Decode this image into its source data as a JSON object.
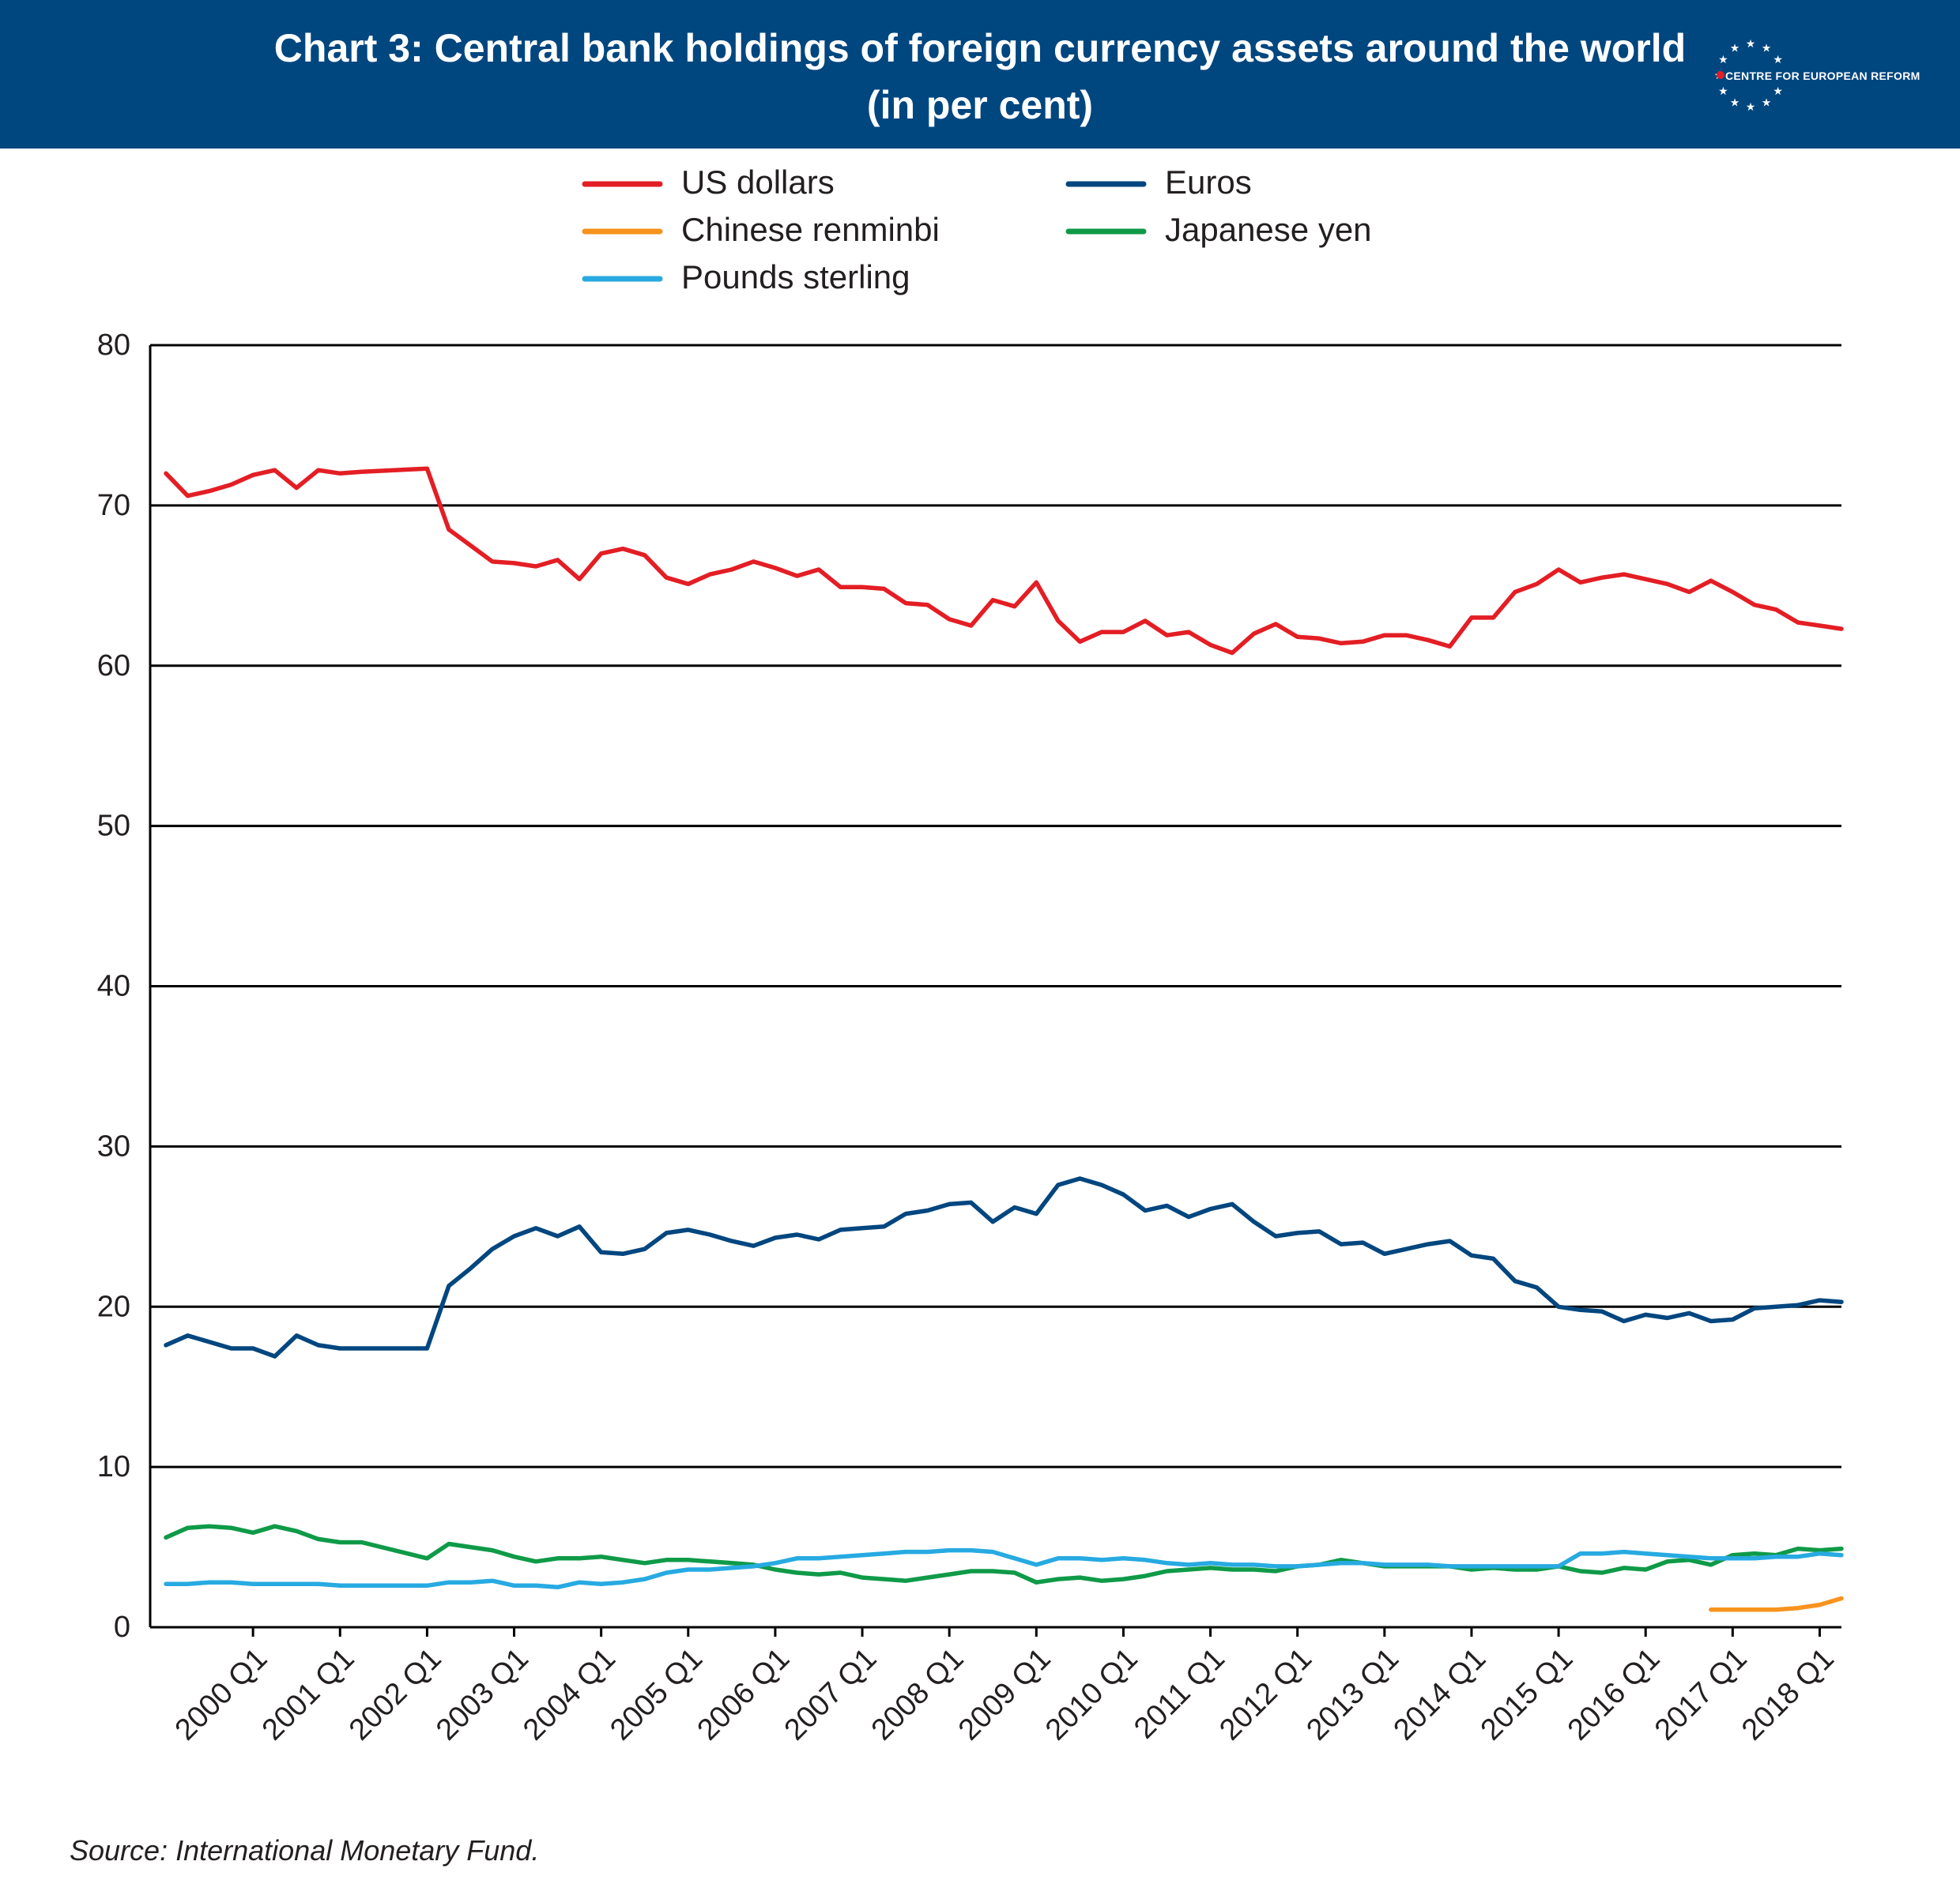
{
  "header": {
    "title_line1": "Chart 3: Central bank holdings of foreign currency assets around the world",
    "title_line2": "(in per cent)",
    "background": "#00467f",
    "logo_text": "CENTRE FOR EUROPEAN REFORM",
    "logo_icon": "eu-star-circle-icon"
  },
  "source": "Source: International Monetary Fund.",
  "chart_data": {
    "type": "line",
    "xlabel": "",
    "ylabel": "",
    "ylim": [
      0,
      80
    ],
    "yticks": [
      0,
      10,
      20,
      30,
      40,
      50,
      60,
      70,
      80
    ],
    "grid": "horizontal",
    "legend_position": "top-center",
    "x_start": "1999 Q1",
    "x_end": "2018 Q2",
    "xtick_labels": [
      "2000 Q1",
      "2001 Q1",
      "2002 Q1",
      "2003 Q1",
      "2004 Q1",
      "2005 Q1",
      "2006 Q1",
      "2007 Q1",
      "2008 Q1",
      "2009 Q1",
      "2010 Q1",
      "2011 Q1",
      "2012 Q1",
      "2013 Q1",
      "2014 Q1",
      "2015 Q1",
      "2016 Q1",
      "2017 Q1",
      "2018 Q1"
    ],
    "series": [
      {
        "name": "US dollars",
        "color": "#e31e24",
        "start": "1999 Q1",
        "values": [
          72.0,
          70.6,
          70.9,
          71.3,
          71.9,
          72.2,
          71.1,
          72.2,
          72.0,
          72.1,
          null,
          null,
          72.3,
          68.5,
          67.5,
          66.5,
          66.4,
          66.2,
          66.6,
          65.4,
          67.0,
          67.3,
          66.9,
          65.5,
          65.1,
          65.7,
          66.0,
          66.5,
          66.1,
          65.6,
          66.0,
          64.9,
          64.9,
          64.8,
          63.9,
          63.8,
          62.9,
          62.5,
          64.1,
          63.7,
          65.2,
          62.8,
          61.5,
          62.1,
          62.1,
          62.8,
          61.9,
          62.1,
          61.3,
          60.8,
          62.0,
          62.6,
          61.8,
          61.7,
          61.4,
          61.5,
          61.9,
          61.9,
          61.6,
          61.2,
          63.0,
          63.0,
          64.6,
          65.1,
          66.0,
          65.2,
          65.5,
          65.7,
          65.4,
          65.1,
          64.6,
          65.3,
          64.6,
          63.8,
          63.5,
          62.7,
          62.5,
          62.3
        ]
      },
      {
        "name": "Euros",
        "color": "#00467f",
        "start": "1999 Q1",
        "values": [
          17.6,
          18.2,
          17.8,
          17.4,
          17.4,
          16.9,
          18.2,
          17.6,
          17.4,
          17.4,
          null,
          null,
          17.4,
          21.3,
          22.4,
          23.6,
          24.4,
          24.9,
          24.4,
          25.0,
          23.4,
          23.3,
          23.6,
          24.6,
          24.8,
          24.5,
          24.1,
          23.8,
          24.3,
          24.5,
          24.2,
          24.8,
          24.9,
          25.0,
          25.8,
          26.0,
          26.4,
          26.5,
          25.3,
          26.2,
          25.8,
          27.6,
          28.0,
          27.6,
          27.0,
          26.0,
          26.3,
          25.6,
          26.1,
          26.4,
          25.3,
          24.4,
          24.6,
          24.7,
          23.9,
          24.0,
          23.3,
          23.6,
          23.9,
          24.1,
          23.2,
          23.0,
          21.6,
          21.2,
          20.0,
          19.8,
          19.7,
          19.1,
          19.5,
          19.3,
          19.6,
          19.1,
          19.2,
          19.9,
          20.0,
          20.1,
          20.4,
          20.3
        ]
      },
      {
        "name": "Chinese renminbi",
        "color": "#f7931e",
        "start": "2016 Q4",
        "values": [
          1.1,
          1.1,
          1.1,
          1.1,
          1.2,
          1.4,
          1.8
        ]
      },
      {
        "name": "Japanese yen",
        "color": "#0f9a48",
        "start": "1999 Q1",
        "values": [
          5.6,
          6.2,
          6.3,
          6.2,
          5.9,
          6.3,
          6.0,
          5.5,
          5.3,
          5.3,
          null,
          null,
          4.3,
          5.2,
          5.0,
          4.8,
          4.4,
          4.1,
          4.3,
          4.3,
          4.4,
          4.2,
          4.0,
          4.2,
          4.2,
          4.1,
          4.0,
          3.9,
          3.6,
          3.4,
          3.3,
          3.4,
          3.1,
          3.0,
          2.9,
          3.1,
          3.3,
          3.5,
          3.5,
          3.4,
          2.8,
          3.0,
          3.1,
          2.9,
          3.0,
          3.2,
          3.5,
          3.6,
          3.7,
          3.6,
          3.6,
          3.5,
          3.8,
          3.9,
          4.2,
          4.0,
          3.8,
          3.8,
          3.8,
          3.8,
          3.6,
          3.7,
          3.6,
          3.6,
          3.8,
          3.5,
          3.4,
          3.7,
          3.6,
          4.1,
          4.2,
          3.9,
          4.5,
          4.6,
          4.5,
          4.9,
          4.8,
          4.9
        ]
      },
      {
        "name": "Pounds sterling",
        "color": "#27aae1",
        "start": "1999 Q1",
        "values": [
          2.7,
          2.7,
          2.8,
          2.8,
          2.7,
          2.7,
          2.7,
          2.7,
          2.6,
          2.6,
          null,
          null,
          2.6,
          2.8,
          2.8,
          2.9,
          2.6,
          2.6,
          2.5,
          2.8,
          2.7,
          2.8,
          3.0,
          3.4,
          3.6,
          3.6,
          3.7,
          3.8,
          4.0,
          4.3,
          4.3,
          4.4,
          4.5,
          4.6,
          4.7,
          4.7,
          4.8,
          4.8,
          4.7,
          4.3,
          3.9,
          4.3,
          4.3,
          4.2,
          4.3,
          4.2,
          4.0,
          3.9,
          4.0,
          3.9,
          3.9,
          3.8,
          3.8,
          3.9,
          4.0,
          4.0,
          3.9,
          3.9,
          3.9,
          3.8,
          3.8,
          3.8,
          3.8,
          3.8,
          3.8,
          4.6,
          4.6,
          4.7,
          4.6,
          4.5,
          4.4,
          4.3,
          4.3,
          4.3,
          4.4,
          4.4,
          4.6,
          4.5
        ]
      }
    ]
  }
}
